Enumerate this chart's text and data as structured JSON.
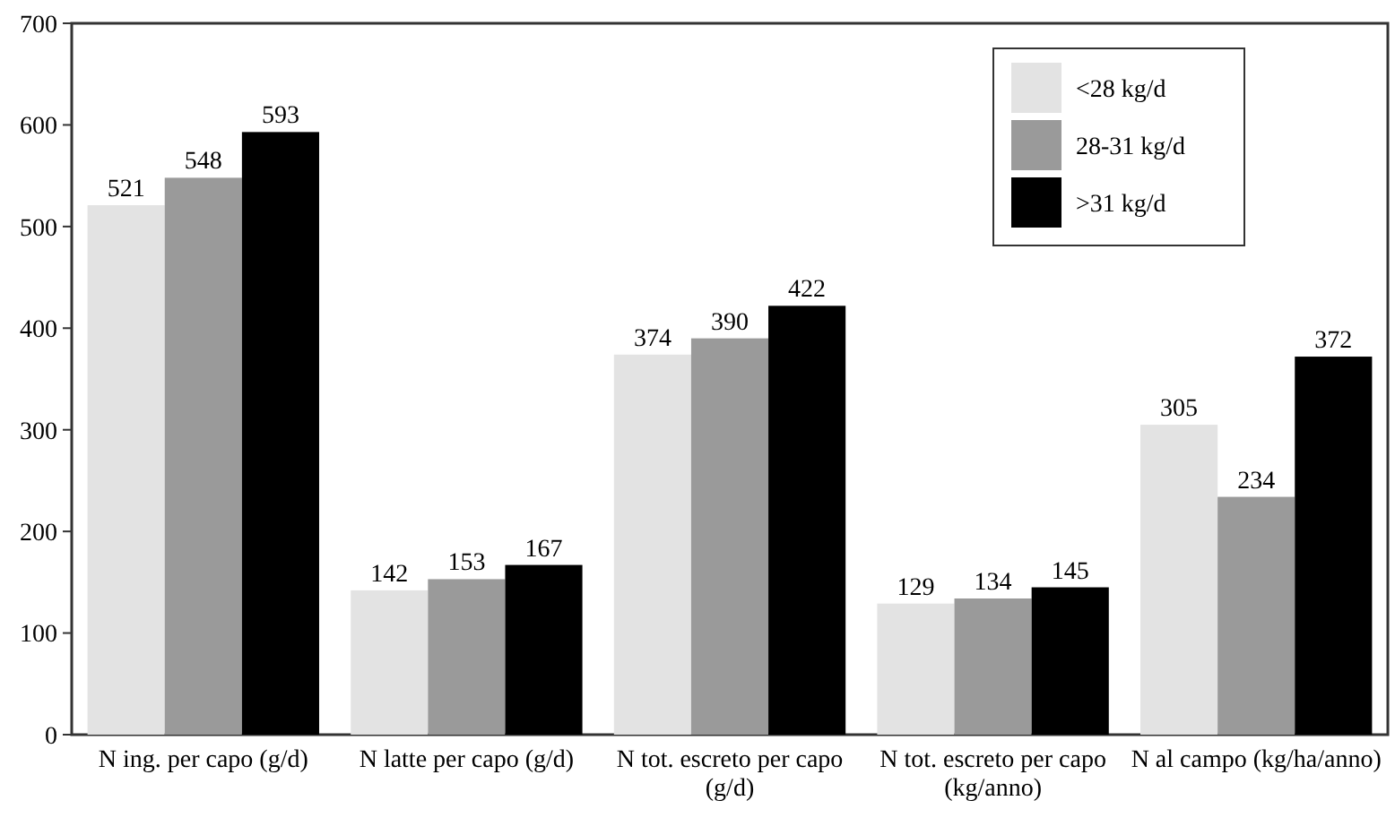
{
  "chart_data": {
    "type": "bar",
    "categories": [
      "N ing. per capo (g/d)",
      "N latte per capo (g/d)",
      "N tot. escreto per capo (g/d)",
      "N tot. escreto per capo (kg/anno)",
      "N al campo (kg/ha/anno)"
    ],
    "series": [
      {
        "name": "<28 kg/d",
        "color": "#e3e3e3",
        "values": [
          521,
          142,
          374,
          129,
          305
        ]
      },
      {
        "name": "28-31 kg/d",
        "color": "#9a9a9a",
        "values": [
          548,
          153,
          390,
          134,
          234
        ]
      },
      {
        "name": ">31 kg/d",
        "color": "#000000",
        "values": [
          593,
          167,
          422,
          145,
          372
        ]
      }
    ],
    "ylim": [
      0,
      700
    ],
    "yticks": [
      0,
      100,
      200,
      300,
      400,
      500,
      600,
      700
    ],
    "data_labels": true,
    "legend": "top right",
    "grid": false
  }
}
